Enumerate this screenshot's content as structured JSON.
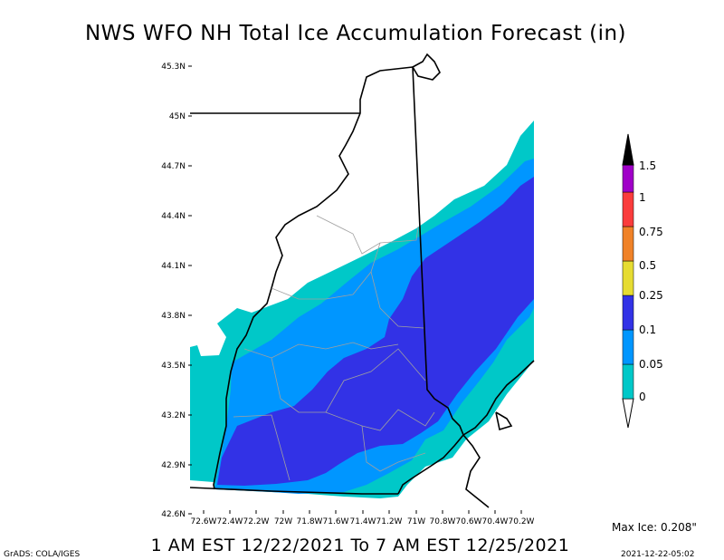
{
  "title": "NWS WFO NH Total Ice Accumulation Forecast (in)",
  "subtitle": "1 AM EST 12/22/2021 To 7 AM EST 12/25/2021",
  "credit": "GrADS: COLA/IGES",
  "timestamp": "2021-12-22-05:02",
  "max_ice_label": "Max Ice: 0.208\"",
  "lat_labels": [
    "45.3N",
    "45N",
    "44.7N",
    "44.4N",
    "44.1N",
    "43.8N",
    "43.5N",
    "43.2N",
    "42.9N",
    "42.6N"
  ],
  "lon_labels": [
    "72.6W",
    "72.4W",
    "72.2W",
    "72W",
    "71.8W",
    "71.6W",
    "71.4W",
    "71.2W",
    "71W",
    "70.8W",
    "70.6W",
    "70.4W",
    "70.2W"
  ],
  "legend": {
    "labels": [
      "0",
      "0.05",
      "0.1",
      "0.25",
      "0.5",
      "0.75",
      "1",
      "1.5"
    ],
    "colors": [
      "#00c8c8",
      "#0096ff",
      "#3232e6",
      "#e6dc32",
      "#f08228",
      "#fa3c3c",
      "#a000c8",
      "#000000"
    ]
  },
  "colors": {
    "cyan": "#00c8c8",
    "light_blue": "#0096ff",
    "blue": "#3232e6"
  }
}
